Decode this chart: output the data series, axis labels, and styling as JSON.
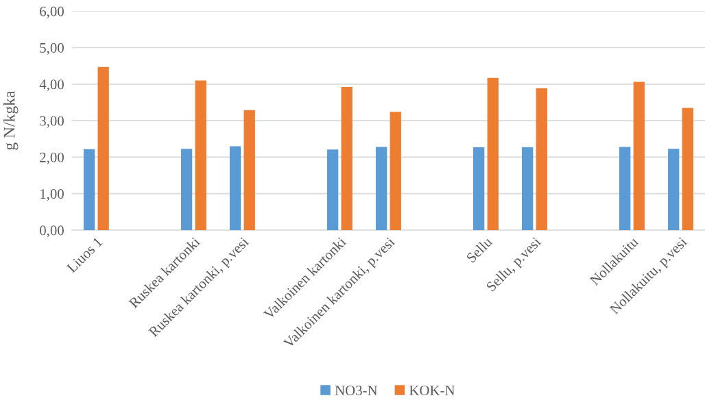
{
  "chart_data": {
    "type": "bar",
    "ylabel": "g N/kgka",
    "categories": [
      "Liuos 1",
      null,
      "Ruskea kartonki",
      "Ruskea kartonki, p.vesi",
      null,
      "Valkoinen kartonki",
      "Valkoinen kartonki, p.vesi",
      null,
      "Sellu",
      "Sellu, p.vesi",
      null,
      "Nollakuitu",
      "Nollakuitu, p.vesi"
    ],
    "series": [
      {
        "name": "NO3-N",
        "color": "#5b9bd5",
        "values": [
          2.22,
          null,
          2.23,
          2.3,
          null,
          2.21,
          2.28,
          null,
          2.27,
          2.27,
          null,
          2.28,
          2.23
        ]
      },
      {
        "name": "KOK-N",
        "color": "#ed7d31",
        "values": [
          4.47,
          null,
          4.1,
          3.29,
          null,
          3.92,
          3.24,
          null,
          4.17,
          3.89,
          null,
          4.06,
          3.35
        ]
      }
    ],
    "ylim": [
      0,
      6
    ],
    "yticks": [
      {
        "value": 0,
        "label": "0,00"
      },
      {
        "value": 1,
        "label": "1,00"
      },
      {
        "value": 2,
        "label": "2,00"
      },
      {
        "value": 3,
        "label": "3,00"
      },
      {
        "value": 4,
        "label": "4,00"
      },
      {
        "value": 5,
        "label": "5,00"
      },
      {
        "value": 6,
        "label": "6,00"
      }
    ],
    "grid": "y",
    "legend": "bottom"
  }
}
